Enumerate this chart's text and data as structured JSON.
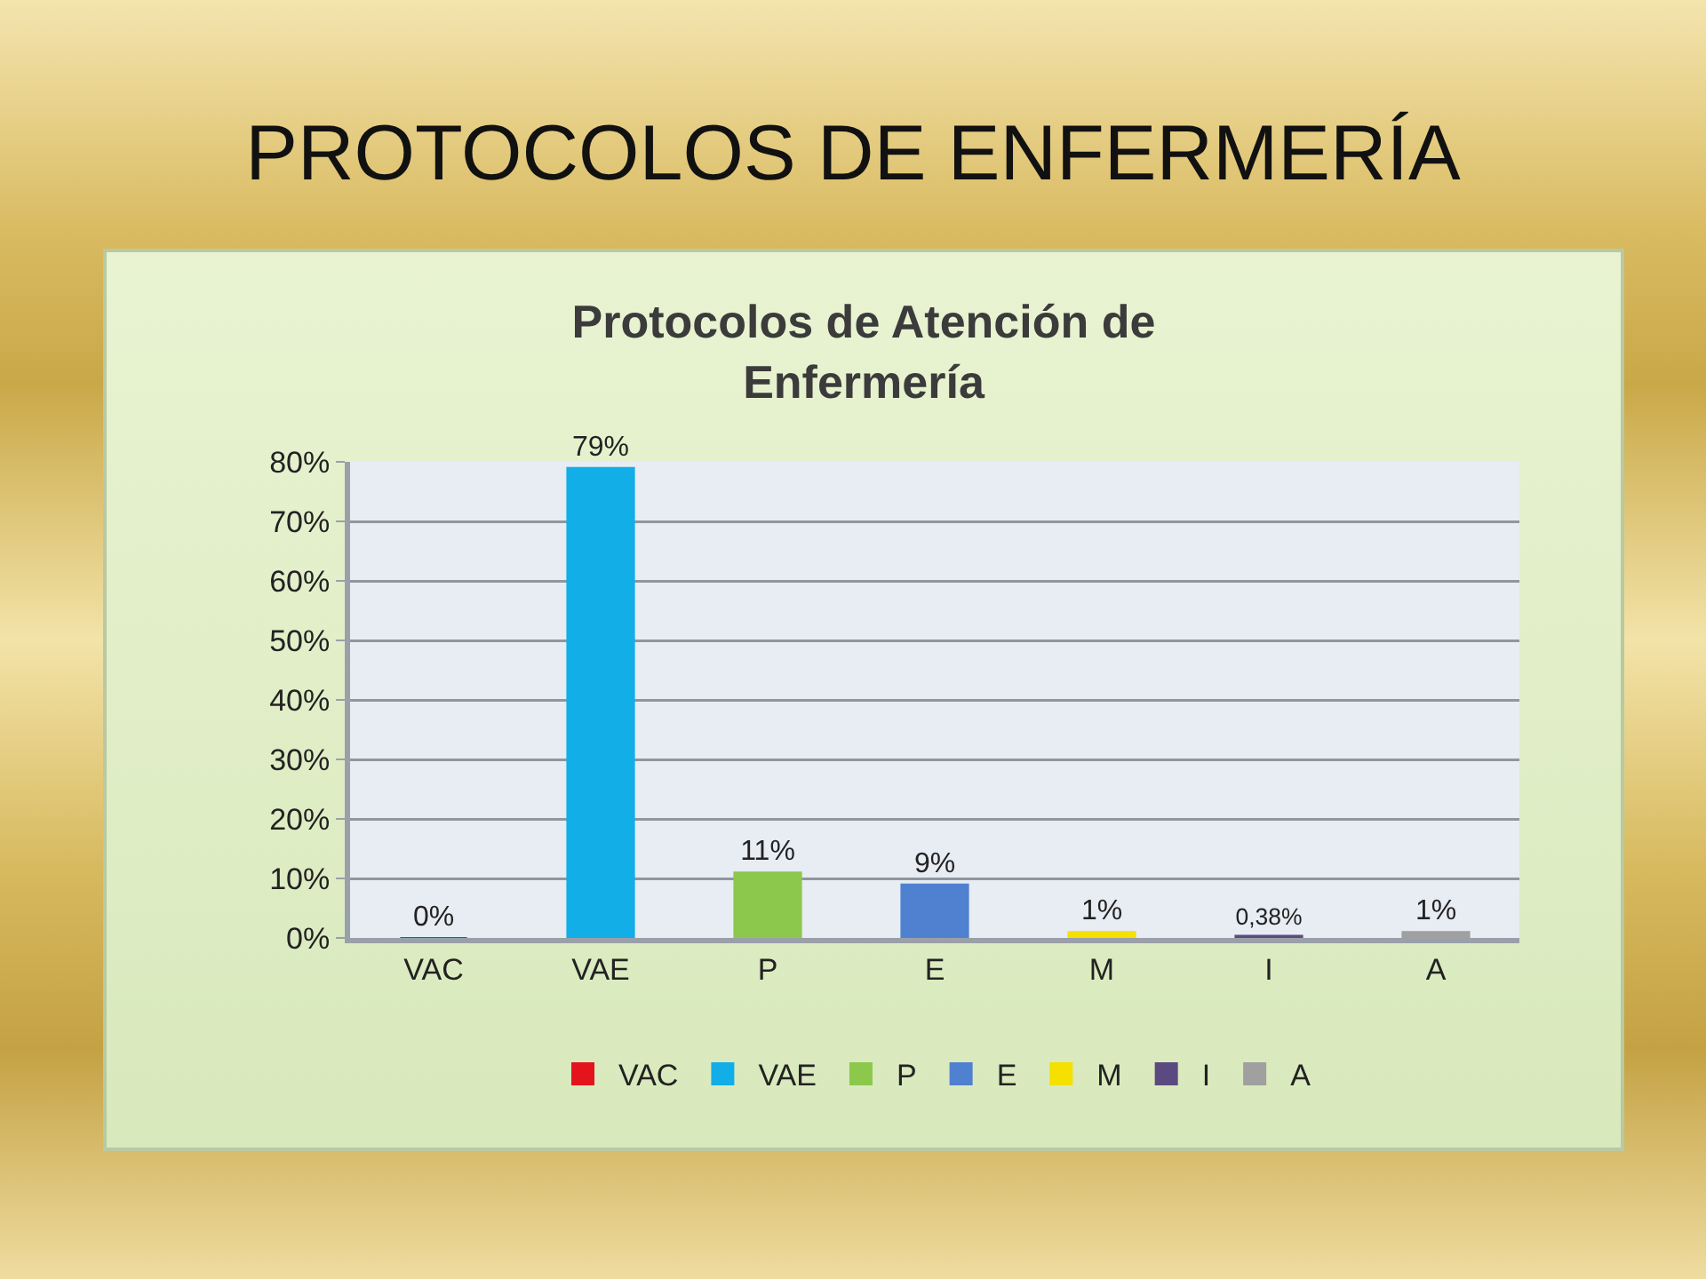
{
  "chart_data": {
    "type": "bar",
    "title": "PROTOCOLOS DE ENFERMERÍA",
    "subtitle": "Protocolos de Atención de Enfermería",
    "categories": [
      "VAC",
      "VAE",
      "P",
      "E",
      "M",
      "I",
      "A"
    ],
    "series": [
      {
        "name": "VAC",
        "color": "#e3141c",
        "values": [
          0,
          null,
          null,
          null,
          null,
          null,
          null
        ],
        "value_labels": [
          "0%",
          null,
          null,
          null,
          null,
          null,
          null
        ]
      },
      {
        "name": "VAE",
        "color": "#12aee8",
        "values": [
          null,
          79,
          null,
          null,
          null,
          null,
          null
        ],
        "value_labels": [
          null,
          "79%",
          null,
          null,
          null,
          null,
          null
        ]
      },
      {
        "name": "P",
        "color": "#8cc84b",
        "values": [
          null,
          null,
          11,
          null,
          null,
          null,
          null
        ],
        "value_labels": [
          null,
          null,
          "11%",
          null,
          null,
          null,
          null
        ]
      },
      {
        "name": "E",
        "color": "#4f81d0",
        "values": [
          null,
          null,
          null,
          9,
          null,
          null,
          null
        ],
        "value_labels": [
          null,
          null,
          null,
          "9%",
          null,
          null,
          null
        ]
      },
      {
        "name": "M",
        "color": "#f5e000",
        "values": [
          null,
          null,
          null,
          null,
          1,
          null,
          null
        ],
        "value_labels": [
          null,
          null,
          null,
          null,
          "1%",
          null,
          null
        ]
      },
      {
        "name": "I",
        "color": "#5b4a80",
        "values": [
          null,
          null,
          null,
          null,
          null,
          0.38,
          null
        ],
        "value_labels": [
          null,
          null,
          null,
          null,
          null,
          "0,38%",
          null
        ]
      },
      {
        "name": "A",
        "color": "#a0a0a0",
        "values": [
          null,
          null,
          null,
          null,
          null,
          null,
          1
        ],
        "value_labels": [
          null,
          null,
          null,
          null,
          null,
          null,
          "1%"
        ]
      }
    ],
    "ylim": [
      0,
      80
    ],
    "yticks": [
      {
        "value": 0,
        "label": "0%"
      },
      {
        "value": 10,
        "label": "10%"
      },
      {
        "value": 20,
        "label": "20%"
      },
      {
        "value": 30,
        "label": "30%"
      },
      {
        "value": 40,
        "label": "40%"
      },
      {
        "value": 50,
        "label": "50%"
      },
      {
        "value": 60,
        "label": "60%"
      },
      {
        "value": 70,
        "label": "70%"
      },
      {
        "value": 80,
        "label": "80%"
      }
    ],
    "grid": "y",
    "legend": "bottom"
  }
}
